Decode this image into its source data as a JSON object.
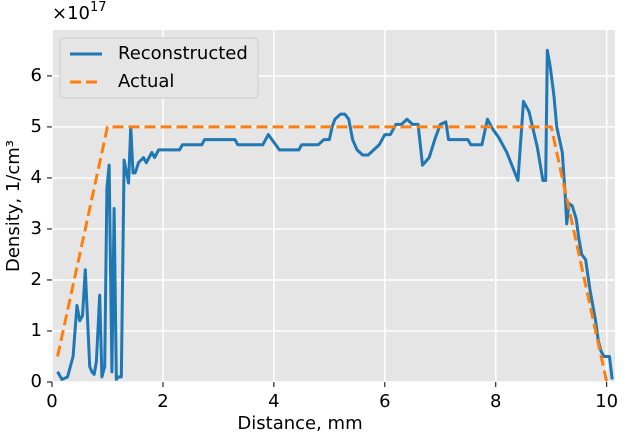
{
  "chart_data": {
    "type": "line",
    "xlabel": "Distance, mm",
    "ylabel": "Density, 1/cm³",
    "y_offset": {
      "base": "×10",
      "exponent": "17"
    },
    "xlim": [
      0,
      10.15
    ],
    "ylim": [
      0,
      6.9
    ],
    "xticks": [
      0,
      2,
      4,
      6,
      8,
      10
    ],
    "yticks": [
      0,
      1,
      2,
      3,
      4,
      5,
      6
    ],
    "grid": true,
    "background": "#e5e5e5",
    "legend": "upper left",
    "series": [
      {
        "name": "Reconstructed",
        "color": "#1f77b4",
        "style": "solid",
        "x": [
          0.1,
          0.18,
          0.28,
          0.38,
          0.45,
          0.5,
          0.55,
          0.6,
          0.68,
          0.72,
          0.76,
          0.8,
          0.86,
          0.9,
          0.95,
          0.99,
          1.03,
          1.08,
          1.12,
          1.16,
          1.2,
          1.25,
          1.3,
          1.38,
          1.42,
          1.46,
          1.5,
          1.56,
          1.65,
          1.7,
          1.8,
          1.85,
          1.92,
          2.0,
          2.1,
          2.3,
          2.35,
          2.7,
          2.75,
          3.3,
          3.35,
          3.8,
          3.9,
          4.0,
          4.1,
          4.45,
          4.5,
          4.8,
          4.9,
          5.0,
          5.05,
          5.1,
          5.2,
          5.28,
          5.35,
          5.42,
          5.5,
          5.6,
          5.7,
          5.8,
          5.9,
          6.0,
          6.1,
          6.2,
          6.3,
          6.4,
          6.5,
          6.6,
          6.68,
          6.72,
          6.8,
          6.9,
          7.0,
          7.1,
          7.15,
          7.25,
          7.5,
          7.55,
          7.75,
          7.85,
          7.95,
          8.05,
          8.2,
          8.4,
          8.5,
          8.6,
          8.75,
          8.85,
          8.9,
          8.93,
          8.98,
          9.05,
          9.1,
          9.2,
          9.25,
          9.28,
          9.32,
          9.38,
          9.45,
          9.5,
          9.55,
          9.62,
          9.7,
          9.8,
          9.85,
          9.9,
          9.95,
          10.0,
          10.05,
          10.1
        ],
        "values": [
          0.2,
          0.05,
          0.1,
          0.5,
          1.5,
          1.2,
          1.3,
          2.2,
          0.3,
          0.2,
          0.15,
          0.4,
          1.7,
          0.1,
          0.3,
          3.8,
          4.25,
          0.2,
          3.4,
          0.05,
          0.1,
          0.1,
          4.35,
          3.9,
          5.0,
          4.1,
          4.1,
          4.3,
          4.4,
          4.3,
          4.5,
          4.4,
          4.55,
          4.55,
          4.55,
          4.55,
          4.65,
          4.65,
          4.75,
          4.75,
          4.65,
          4.65,
          4.85,
          4.7,
          4.55,
          4.55,
          4.65,
          4.65,
          4.75,
          4.75,
          5.0,
          5.15,
          5.25,
          5.25,
          5.15,
          4.75,
          4.55,
          4.45,
          4.45,
          4.55,
          4.65,
          4.85,
          4.85,
          5.05,
          5.05,
          5.15,
          5.05,
          5.05,
          4.25,
          4.3,
          4.4,
          4.75,
          5.05,
          5.1,
          4.75,
          4.75,
          4.75,
          4.65,
          4.65,
          5.15,
          4.95,
          4.8,
          4.5,
          3.95,
          5.5,
          5.3,
          4.6,
          3.95,
          3.95,
          6.5,
          6.2,
          5.6,
          5.0,
          4.5,
          3.7,
          3.1,
          3.5,
          3.45,
          3.2,
          2.8,
          2.5,
          2.4,
          1.8,
          1.2,
          0.8,
          0.6,
          0.5,
          0.5,
          0.5,
          0.05
        ]
      },
      {
        "name": "Actual",
        "color": "#ff7f0e",
        "style": "dashed",
        "x": [
          0.1,
          1,
          9,
          10
        ],
        "values": [
          0.5,
          5,
          5,
          0
        ]
      }
    ]
  }
}
